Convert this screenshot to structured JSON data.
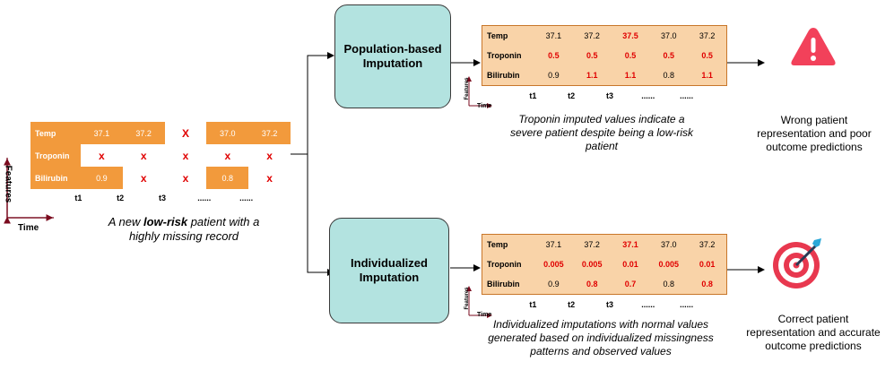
{
  "colors": {
    "orange": "#f29a3c",
    "light_orange": "#f9d3a8",
    "teal": "#b3e3e0",
    "red": "#e00000",
    "axis": "#7a0a1e"
  },
  "input_table": {
    "rows": [
      {
        "label": "Temp",
        "cells": [
          {
            "t": "37.1",
            "missing": false
          },
          {
            "t": "37.2",
            "missing": false
          },
          {
            "t": "X",
            "missing": true
          },
          {
            "t": "37.0",
            "missing": false
          },
          {
            "t": "37.2",
            "missing": false
          }
        ]
      },
      {
        "label": "Troponin",
        "cells": [
          {
            "t": "x",
            "missing": true
          },
          {
            "t": "x",
            "missing": true
          },
          {
            "t": "x",
            "missing": true
          },
          {
            "t": "x",
            "missing": true
          },
          {
            "t": "x",
            "missing": true
          }
        ]
      },
      {
        "label": "Bilirubin",
        "cells": [
          {
            "t": "0.9",
            "missing": false
          },
          {
            "t": "x",
            "missing": true
          },
          {
            "t": "x",
            "missing": true
          },
          {
            "t": "0.8",
            "missing": false
          },
          {
            "t": "x",
            "missing": true
          }
        ]
      }
    ],
    "time_labels": [
      "t1",
      "t2",
      "t3",
      "......",
      "......"
    ],
    "axis_features": "Features",
    "axis_time": "Time",
    "caption_pre": "A new ",
    "caption_bold": "low-risk",
    "caption_post": " patient with a highly missing record"
  },
  "population": {
    "title": "Population-based Imputation",
    "rows": [
      {
        "label": "Temp",
        "cells": [
          {
            "t": "37.1",
            "r": false
          },
          {
            "t": "37.2",
            "r": false
          },
          {
            "t": "37.5",
            "r": true
          },
          {
            "t": "37.0",
            "r": false
          },
          {
            "t": "37.2",
            "r": false
          }
        ]
      },
      {
        "label": "Troponin",
        "cells": [
          {
            "t": "0.5",
            "r": true
          },
          {
            "t": "0.5",
            "r": true
          },
          {
            "t": "0.5",
            "r": true
          },
          {
            "t": "0.5",
            "r": true
          },
          {
            "t": "0.5",
            "r": true
          }
        ]
      },
      {
        "label": "Bilirubin",
        "cells": [
          {
            "t": "0.9",
            "r": false
          },
          {
            "t": "1.1",
            "r": true
          },
          {
            "t": "1.1",
            "r": true
          },
          {
            "t": "0.8",
            "r": false
          },
          {
            "t": "1.1",
            "r": true
          }
        ]
      }
    ],
    "time_labels": [
      "t1",
      "t2",
      "t3",
      "......",
      "......"
    ],
    "axis_features": "Features",
    "axis_time": "Time",
    "caption": "Troponin imputed values indicate a severe patient  despite being a low-risk patient",
    "outcome": "Wrong patient representation and poor outcome predictions",
    "outcome_icon": "warning-triangle-icon"
  },
  "individual": {
    "title": "Individualized Imputation",
    "rows": [
      {
        "label": "Temp",
        "cells": [
          {
            "t": "37.1",
            "r": false
          },
          {
            "t": "37.2",
            "r": false
          },
          {
            "t": "37.1",
            "r": true
          },
          {
            "t": "37.0",
            "r": false
          },
          {
            "t": "37.2",
            "r": false
          }
        ]
      },
      {
        "label": "Troponin",
        "cells": [
          {
            "t": "0.005",
            "r": true
          },
          {
            "t": "0.005",
            "r": true
          },
          {
            "t": "0.01",
            "r": true
          },
          {
            "t": "0.005",
            "r": true
          },
          {
            "t": "0.01",
            "r": true
          }
        ]
      },
      {
        "label": "Bilirubin",
        "cells": [
          {
            "t": "0.9",
            "r": false
          },
          {
            "t": "0.8",
            "r": true
          },
          {
            "t": "0.7",
            "r": true
          },
          {
            "t": "0.8",
            "r": false
          },
          {
            "t": "0.8",
            "r": true
          }
        ]
      }
    ],
    "time_labels": [
      "t1",
      "t2",
      "t3",
      "......",
      "......"
    ],
    "axis_features": "Features",
    "axis_time": "Time",
    "caption": "Individualized imputations with normal values generated based on individualized  missingness patterns and observed values",
    "outcome": "Correct patient representation and accurate outcome predictions",
    "outcome_icon": "target-bullseye-icon"
  }
}
